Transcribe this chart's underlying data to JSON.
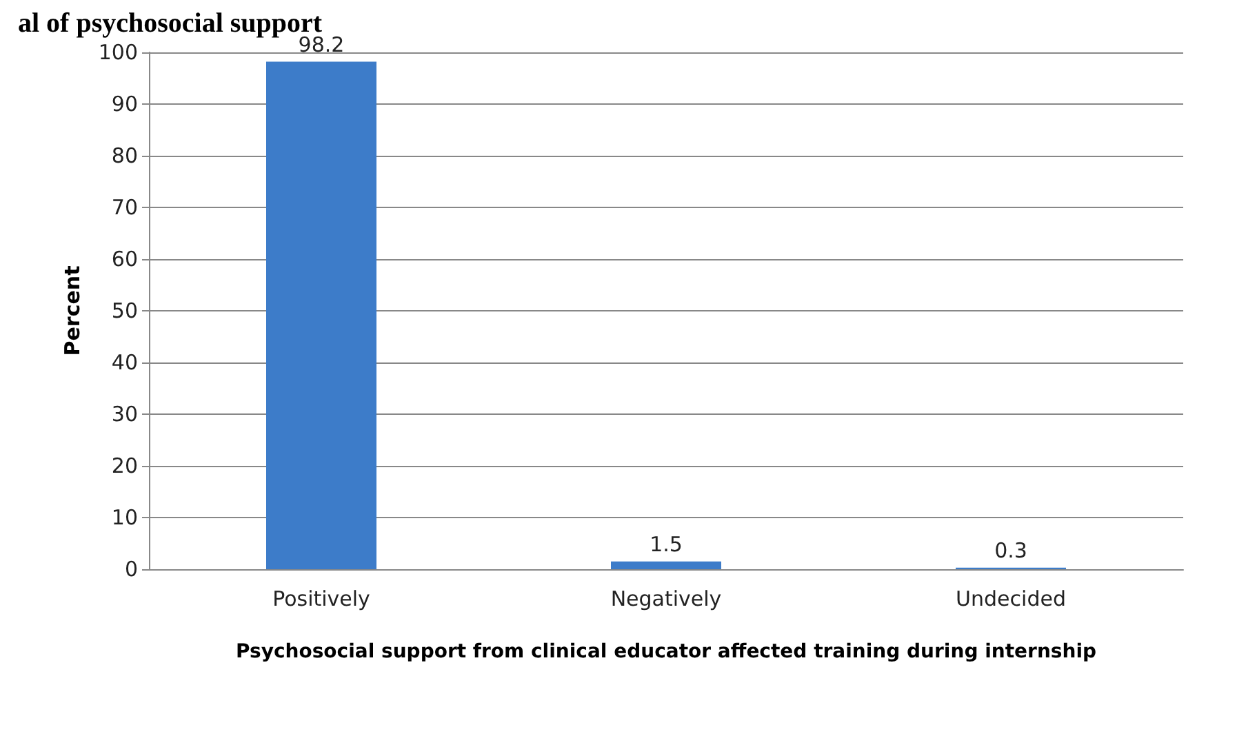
{
  "chart_data": {
    "type": "bar",
    "title": "al of psychosocial support",
    "categories": [
      "Positively",
      "Negatively",
      "Undecided"
    ],
    "values": [
      98.2,
      1.5,
      0.3
    ],
    "color": "#3d7cc9",
    "xlabel": "Psychosocial support from clinical educator affected training during internship",
    "ylabel": "Percent",
    "ylim": [
      0,
      100
    ],
    "yticks": [
      0,
      10,
      20,
      30,
      40,
      50,
      60,
      70,
      80,
      90,
      100
    ],
    "grid": "y",
    "data_labels": true
  }
}
